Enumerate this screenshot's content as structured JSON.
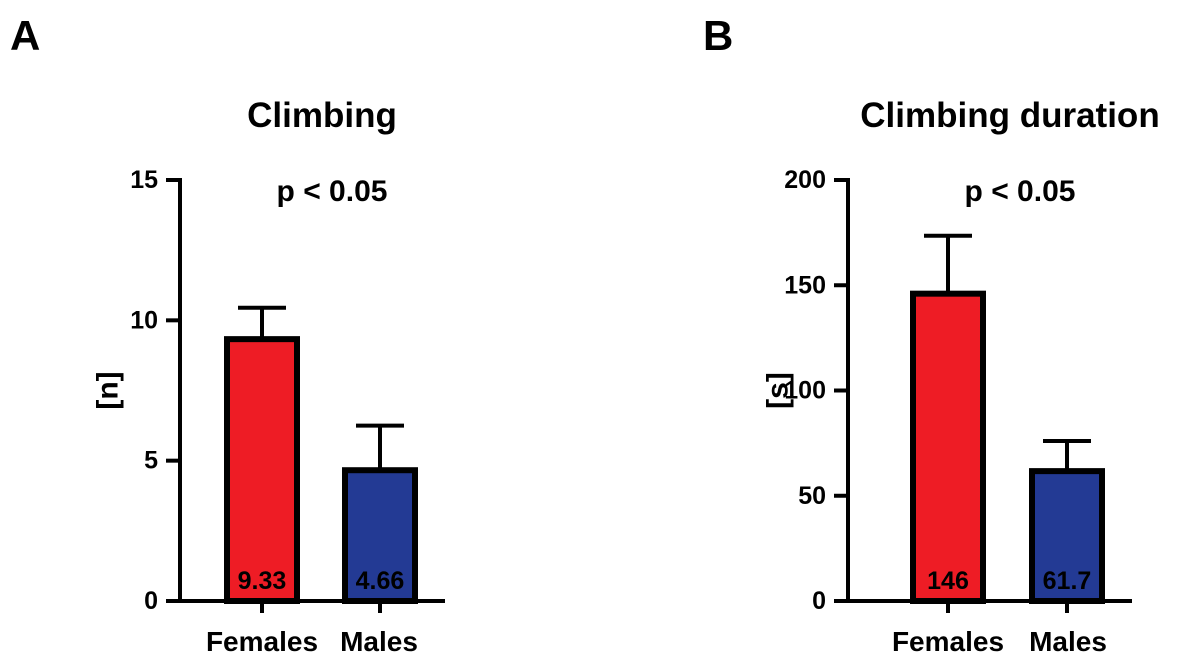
{
  "chart_data": [
    {
      "type": "bar",
      "panel": "A",
      "title": "Climbing",
      "annotation": "p < 0.05",
      "xlabel": "",
      "ylabel": "[n]",
      "ylim": [
        0,
        15
      ],
      "yticks": [
        0,
        5,
        10,
        15
      ],
      "categories": [
        "Females",
        "Males"
      ],
      "values": [
        9.33,
        4.66
      ],
      "error_upper": [
        10.45,
        6.25
      ],
      "value_labels": [
        "9.33",
        "4.66"
      ],
      "colors": [
        "#ee1c25",
        "#233a94"
      ]
    },
    {
      "type": "bar",
      "panel": "B",
      "title": "Climbing duration",
      "annotation": "p < 0.05",
      "xlabel": "",
      "ylabel": "[s]",
      "ylim": [
        0,
        200
      ],
      "yticks": [
        0,
        50,
        100,
        150,
        200
      ],
      "categories": [
        "Females",
        "Males"
      ],
      "values": [
        146,
        61.7
      ],
      "error_upper": [
        173.5,
        76
      ],
      "value_labels": [
        "146",
        "61.7"
      ],
      "colors": [
        "#ee1c25",
        "#233a94"
      ]
    }
  ]
}
